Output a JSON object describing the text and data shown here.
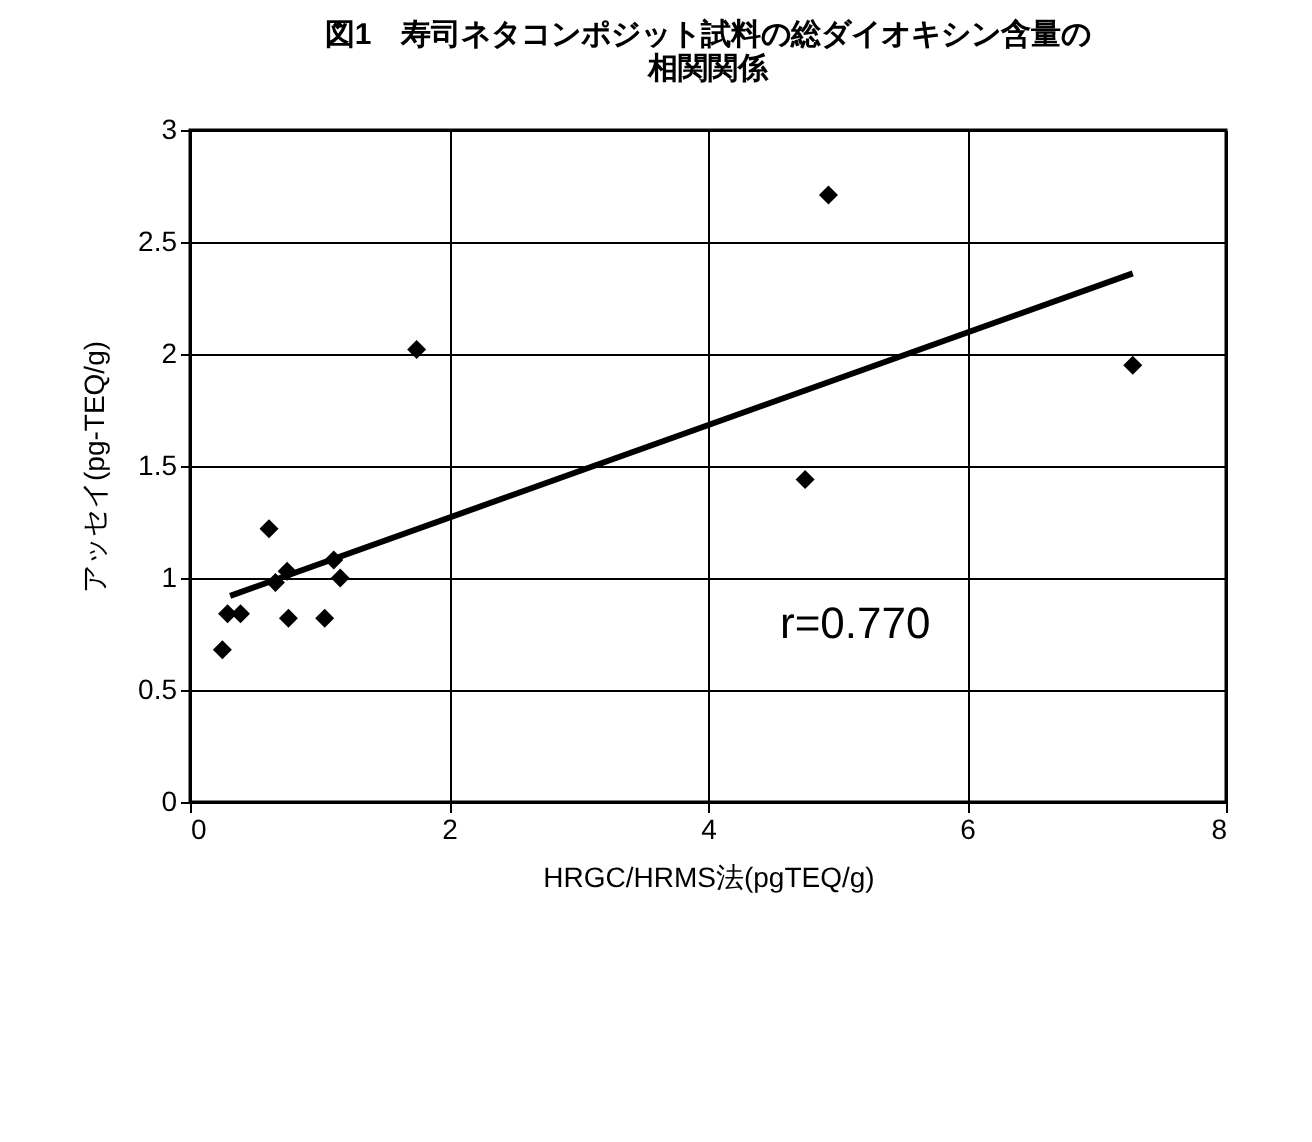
{
  "chart_data": {
    "type": "scatter",
    "title": [
      "図1　寿司ネタコンポジット試料の総ダイオキシン含量の",
      "相関関係"
    ],
    "xlabel": "HRGC/HRMS法(pgTEQ/g)",
    "ylabel": "アッセイ(pg-TEQ/g)",
    "series": [
      {
        "color": "#000000",
        "marker": "diamond",
        "x": [
          0.25,
          0.29,
          0.39,
          0.61,
          0.66,
          0.75,
          0.76,
          1.04,
          1.11,
          1.16,
          1.75,
          4.75,
          4.93,
          7.28
        ],
        "values": [
          0.68,
          0.84,
          0.84,
          1.22,
          0.98,
          1.03,
          0.82,
          0.82,
          1.08,
          1.0,
          2.02,
          1.44,
          2.71,
          1.95
        ]
      },
      {
        "type": "line",
        "color": "#000000",
        "marker": "none",
        "x": [
          0.31,
          7.28
        ],
        "values": [
          0.92,
          2.36
        ]
      }
    ],
    "annotations": [
      "r=0.770"
    ],
    "xlim": [
      0,
      8
    ],
    "xticks": [
      0,
      2,
      4,
      6,
      8
    ],
    "ylim": [
      0,
      3
    ],
    "yticks": [
      0,
      0.5,
      1,
      1.5,
      2,
      2.5,
      3
    ],
    "grid": true
  }
}
